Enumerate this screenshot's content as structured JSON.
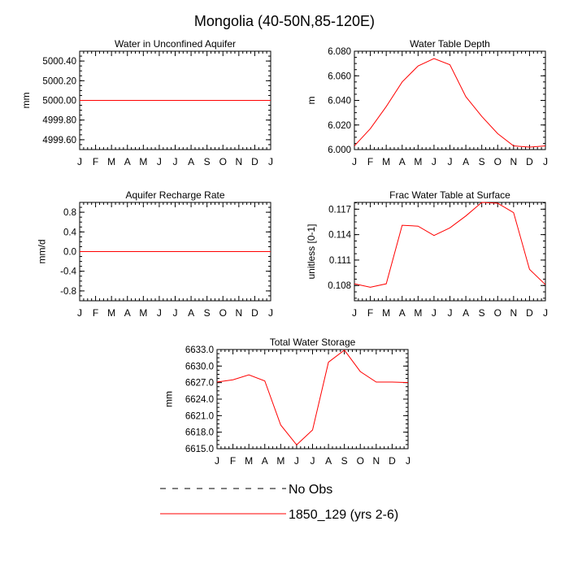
{
  "figure_title": "Mongolia (40-50N,85-120E)",
  "legend": {
    "items": [
      {
        "label": "No Obs",
        "style": "dashed",
        "color": "#000000"
      },
      {
        "label": "1850_129 (yrs 2-6)",
        "style": "solid",
        "color": "#ff0000"
      }
    ]
  },
  "chart_data": [
    {
      "type": "line",
      "title": "Water in Unconfined Aquifer",
      "ylabel": "mm",
      "xlabel": "",
      "categories": [
        "J",
        "F",
        "M",
        "A",
        "M",
        "J",
        "J",
        "A",
        "S",
        "O",
        "N",
        "D",
        "J"
      ],
      "ylim": [
        4999.5,
        5000.5
      ],
      "yticks": [
        4999.6,
        4999.8,
        5000.0,
        5000.2,
        5000.4
      ],
      "ytick_labels": [
        "4999.60",
        "4999.80",
        "5000.00",
        "5000.20",
        "5000.40"
      ],
      "series": [
        {
          "name": "1850_129 (yrs 2-6)",
          "color": "#ff0000",
          "values": [
            5000,
            5000,
            5000,
            5000,
            5000,
            5000,
            5000,
            5000,
            5000,
            5000,
            5000,
            5000,
            5000
          ]
        }
      ]
    },
    {
      "type": "line",
      "title": "Water Table Depth",
      "ylabel": "m",
      "xlabel": "",
      "categories": [
        "J",
        "F",
        "M",
        "A",
        "M",
        "J",
        "J",
        "A",
        "S",
        "O",
        "N",
        "D",
        "J"
      ],
      "ylim": [
        6.0,
        6.08
      ],
      "yticks": [
        6.0,
        6.02,
        6.04,
        6.06,
        6.08
      ],
      "ytick_labels": [
        "6.000",
        "6.020",
        "6.040",
        "6.060",
        "6.080"
      ],
      "series": [
        {
          "name": "1850_129 (yrs 2-6)",
          "color": "#ff0000",
          "values": [
            6.003,
            6.017,
            6.035,
            6.055,
            6.068,
            6.074,
            6.069,
            6.043,
            6.027,
            6.013,
            6.003,
            6.002,
            6.003
          ]
        }
      ]
    },
    {
      "type": "line",
      "title": "Aquifer Recharge Rate",
      "ylabel": "mm/d",
      "xlabel": "",
      "categories": [
        "J",
        "F",
        "M",
        "A",
        "M",
        "J",
        "J",
        "A",
        "S",
        "O",
        "N",
        "D",
        "J"
      ],
      "ylim": [
        -1.0,
        1.0
      ],
      "yticks": [
        -0.8,
        -0.4,
        0.0,
        0.4,
        0.8
      ],
      "ytick_labels": [
        "-0.8",
        "-0.4",
        "0.0",
        "0.4",
        "0.8"
      ],
      "series": [
        {
          "name": "1850_129 (yrs 2-6)",
          "color": "#ff0000",
          "values": [
            0,
            0,
            0,
            0,
            0,
            0,
            0,
            0,
            0,
            0,
            0,
            0,
            0
          ]
        }
      ]
    },
    {
      "type": "line",
      "title": "Frac Water Table at Surface",
      "ylabel": "unitless [0-1]",
      "xlabel": "",
      "categories": [
        "J",
        "F",
        "M",
        "A",
        "M",
        "J",
        "J",
        "A",
        "S",
        "O",
        "N",
        "D",
        "J"
      ],
      "ylim": [
        0.1062,
        0.1178
      ],
      "yticks": [
        0.108,
        0.111,
        0.114,
        0.117
      ],
      "ytick_labels": [
        "0.108",
        "0.111",
        "0.114",
        "0.117"
      ],
      "series": [
        {
          "name": "1850_129 (yrs 2-6)",
          "color": "#ff0000",
          "values": [
            0.1082,
            0.1078,
            0.1082,
            0.1151,
            0.115,
            0.1139,
            0.1148,
            0.1162,
            0.1178,
            0.1177,
            0.1166,
            0.1099,
            0.1081
          ]
        }
      ]
    },
    {
      "type": "line",
      "title": "Total Water Storage",
      "ylabel": "mm",
      "xlabel": "",
      "categories": [
        "J",
        "F",
        "M",
        "A",
        "M",
        "J",
        "J",
        "A",
        "S",
        "O",
        "N",
        "D",
        "J"
      ],
      "ylim": [
        6615.0,
        6633.0
      ],
      "yticks": [
        6615.0,
        6618.0,
        6621.0,
        6624.0,
        6627.0,
        6630.0,
        6633.0
      ],
      "ytick_labels": [
        "6615.0",
        "6618.0",
        "6621.0",
        "6624.0",
        "6627.0",
        "6630.0",
        "6633.0"
      ],
      "series": [
        {
          "name": "1850_129 (yrs 2-6)",
          "color": "#ff0000",
          "values": [
            6627.1,
            6627.5,
            6628.4,
            6627.3,
            6619.3,
            6615.7,
            6618.4,
            6630.7,
            6632.9,
            6629.0,
            6627.1,
            6627.1,
            6627.0
          ]
        }
      ]
    }
  ]
}
